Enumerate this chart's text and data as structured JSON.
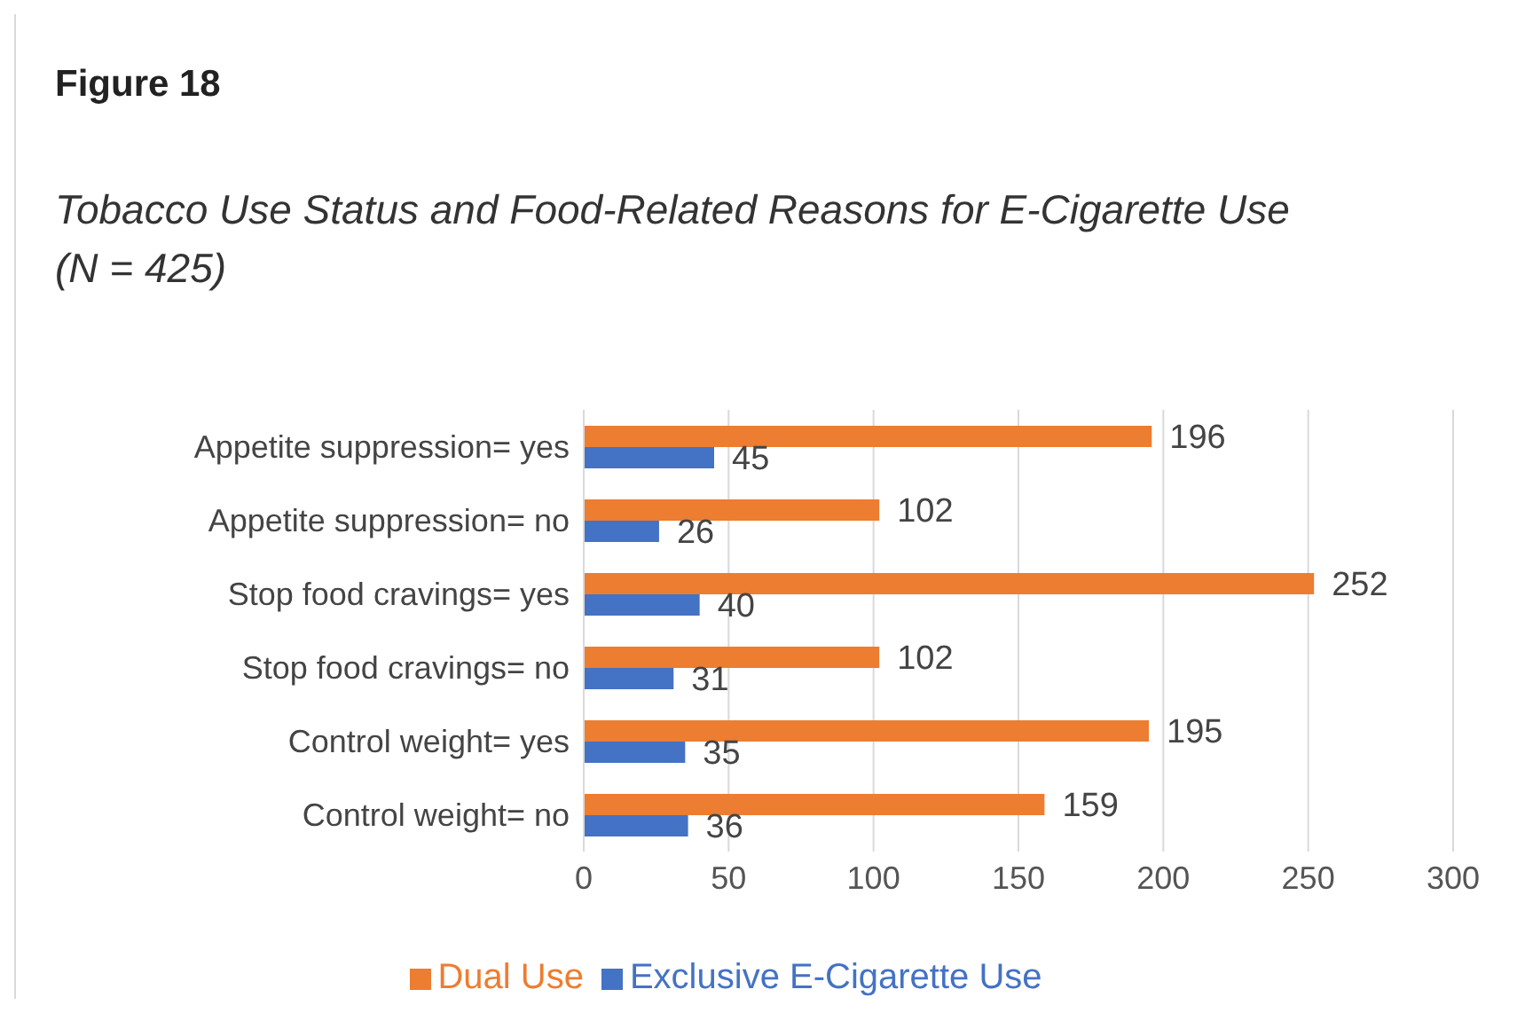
{
  "chart_data": {
    "type": "bar",
    "orientation": "horizontal",
    "title": "Figure 18",
    "subtitle": "Tobacco Use Status and Food-Related Reasons for E-Cigarette Use (N = 425)",
    "categories": [
      "Appetite suppression= yes",
      "Appetite suppression= no",
      "Stop food cravings= yes",
      "Stop food cravings= no",
      "Control weight= yes",
      "Control weight= no"
    ],
    "series": [
      {
        "name": "Dual Use",
        "color": "#ed7d31",
        "values": [
          196,
          102,
          252,
          102,
          195,
          159
        ]
      },
      {
        "name": "Exclusive E-Cigarette Use",
        "color": "#4472c4",
        "values": [
          45,
          26,
          40,
          31,
          35,
          36
        ]
      }
    ],
    "xlim": [
      0,
      300
    ],
    "xticks": [
      0,
      50,
      100,
      150,
      200,
      250,
      300
    ],
    "grid": "x",
    "legend": "bottom",
    "data_labels": true
  }
}
